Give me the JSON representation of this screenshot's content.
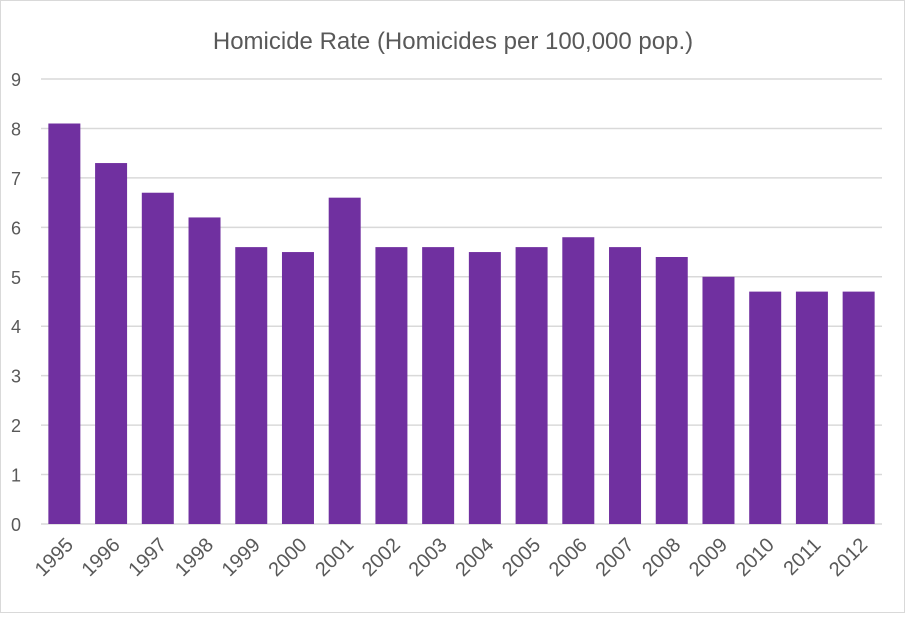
{
  "chart_data": {
    "type": "bar",
    "title": "Homicide Rate (Homicides per 100,000 pop.)",
    "xlabel": "",
    "ylabel": "",
    "ylim": [
      0,
      9
    ],
    "yticks": [
      "0",
      "1",
      "2",
      "3",
      "4",
      "5",
      "6",
      "7",
      "8",
      "9"
    ],
    "grid": true,
    "legend": "none",
    "color": "#7030A0",
    "categories": [
      "1995",
      "1996",
      "1997",
      "1998",
      "1999",
      "2000",
      "2001",
      "2002",
      "2003",
      "2004",
      "2005",
      "2006",
      "2007",
      "2008",
      "2009",
      "2010",
      "2011",
      "2012"
    ],
    "values": [
      8.1,
      7.3,
      6.7,
      6.2,
      5.6,
      5.5,
      6.6,
      5.6,
      5.6,
      5.5,
      5.6,
      5.8,
      5.6,
      5.4,
      5.0,
      4.7,
      4.7,
      4.7
    ]
  }
}
